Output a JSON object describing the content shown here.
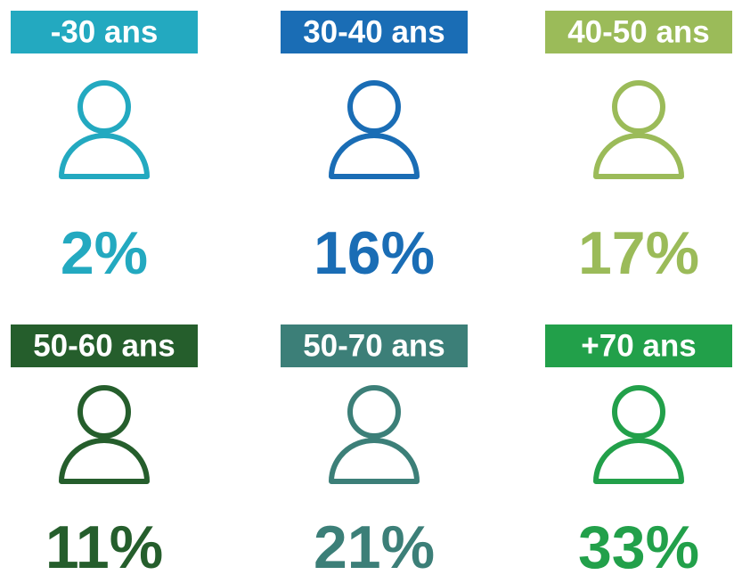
{
  "items": [
    {
      "label": "-30 ans",
      "value": "2%",
      "color": "#23a9c0"
    },
    {
      "label": "30-40 ans",
      "value": "16%",
      "color": "#1a6db5"
    },
    {
      "label": "40-50 ans",
      "value": "17%",
      "color": "#9bbb59"
    },
    {
      "label": "50-60 ans",
      "value": "11%",
      "color": "#255e2c"
    },
    {
      "label": "50-70 ans",
      "value": "21%",
      "color": "#3c7f78"
    },
    {
      "label": "+70 ans",
      "value": "33%",
      "color": "#22a04a"
    }
  ]
}
